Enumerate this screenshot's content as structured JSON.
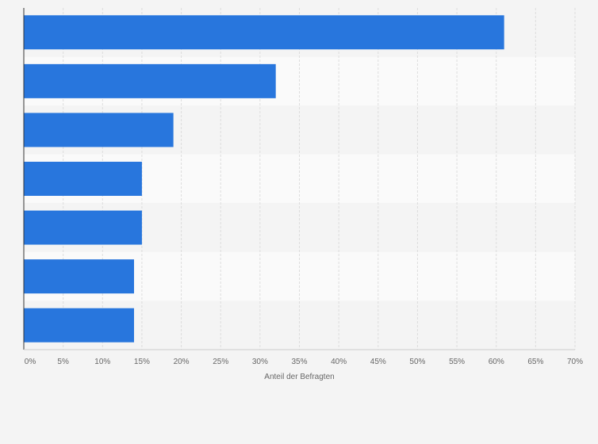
{
  "chart_data": {
    "type": "bar",
    "orientation": "horizontal",
    "categories": [
      "",
      "",
      "",
      "",
      "",
      "",
      ""
    ],
    "values": [
      61,
      32,
      19,
      15,
      15,
      14,
      14
    ],
    "value_unit": "%",
    "xlabel": "Anteil der Befragten",
    "ylabel": "",
    "xlim": [
      0,
      70
    ],
    "x_ticks": [
      "0%",
      "5%",
      "10%",
      "15%",
      "20%",
      "25%",
      "30%",
      "35%",
      "40%",
      "45%",
      "50%",
      "55%",
      "60%",
      "65%",
      "70%"
    ],
    "grid": true,
    "legend": "none",
    "colors": {
      "bar": "#2876dd",
      "background": "#f4f4f4",
      "band_light": "#fafafa",
      "band_dark": "#f4f4f4",
      "grid": "#dddddd",
      "axis": "#333333",
      "text": "#666666"
    }
  }
}
